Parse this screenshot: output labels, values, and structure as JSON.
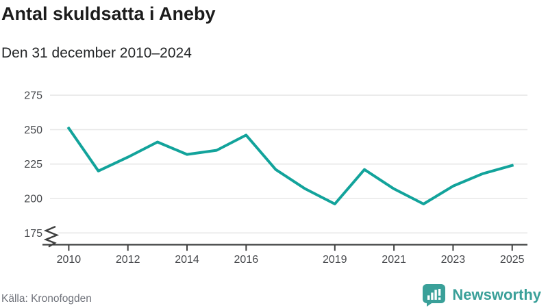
{
  "header": {
    "title": "Antal skuldsatta i Aneby",
    "subtitle": "Den 31 december 2010–2024"
  },
  "footer": {
    "source": "Källa: Kronofogden",
    "brand": "Newsworthy"
  },
  "colors": {
    "line": "#12a39b",
    "brand_teal": "#3aa099",
    "grid": "#e7e7e7",
    "axis": "#3f4040",
    "axis_label": "#46484c",
    "title_text": "#1c1c1c",
    "source_text": "#6f727a"
  },
  "chart_data": {
    "type": "line",
    "title": "Antal skuldsatta i Aneby",
    "subtitle": "Den 31 december 2010–2024",
    "x": [
      2010,
      2011,
      2012,
      2013,
      2014,
      2015,
      2016,
      2017,
      2018,
      2019,
      2020,
      2021,
      2022,
      2023,
      2024,
      2025
    ],
    "values": [
      251,
      220,
      230,
      241,
      232,
      235,
      246,
      221,
      207,
      196,
      221,
      207,
      196,
      209,
      218,
      224
    ],
    "series_name": "Antal skuldsatta",
    "x_ticks": [
      2010,
      2012,
      2014,
      2016,
      2019,
      2021,
      2023,
      2025
    ],
    "x_tick_labels": [
      "2010",
      "2012",
      "2014",
      "2016",
      "2019",
      "2021",
      "2023",
      "2025"
    ],
    "y_ticks": [
      175,
      200,
      225,
      250,
      275
    ],
    "ylim": [
      175,
      287
    ],
    "y_axis_break": true,
    "grid": "horizontal-only",
    "legend": "none",
    "source": "Kronofogden"
  }
}
